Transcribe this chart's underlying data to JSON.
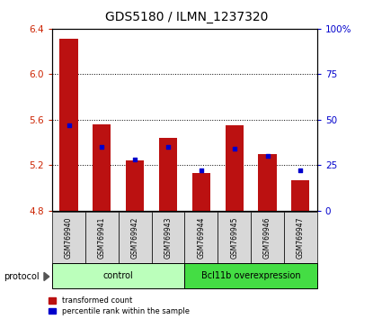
{
  "title": "GDS5180 / ILMN_1237320",
  "samples": [
    "GSM769940",
    "GSM769941",
    "GSM769942",
    "GSM769943",
    "GSM769944",
    "GSM769945",
    "GSM769946",
    "GSM769947"
  ],
  "red_values": [
    6.31,
    5.56,
    5.24,
    5.44,
    5.13,
    5.55,
    5.3,
    5.07
  ],
  "blue_values": [
    47,
    35,
    28,
    35,
    22,
    34,
    30,
    22
  ],
  "ylim_left": [
    4.8,
    6.4
  ],
  "ylim_right": [
    0,
    100
  ],
  "yticks_left": [
    4.8,
    5.2,
    5.6,
    6.0,
    6.4
  ],
  "yticks_right": [
    0,
    25,
    50,
    75,
    100
  ],
  "ytick_labels_right": [
    "0",
    "25",
    "50",
    "75",
    "100%"
  ],
  "ytick_labels_left": [
    "4.8",
    "5.2",
    "5.6",
    "6.0",
    "6.4"
  ],
  "hlines": [
    6.0,
    5.6,
    5.2
  ],
  "bar_bottom": 4.8,
  "red_color": "#bb1111",
  "blue_color": "#0000cc",
  "bar_width": 0.55,
  "title_fontsize": 10,
  "axis_label_color_left": "#cc2200",
  "axis_label_color_right": "#0000cc",
  "sample_box_color": "#d8d8d8",
  "control_color": "#bbffbb",
  "overexp_color": "#44dd44",
  "legend_items": [
    {
      "label": "transformed count",
      "color": "#bb1111"
    },
    {
      "label": "percentile rank within the sample",
      "color": "#0000cc"
    }
  ]
}
